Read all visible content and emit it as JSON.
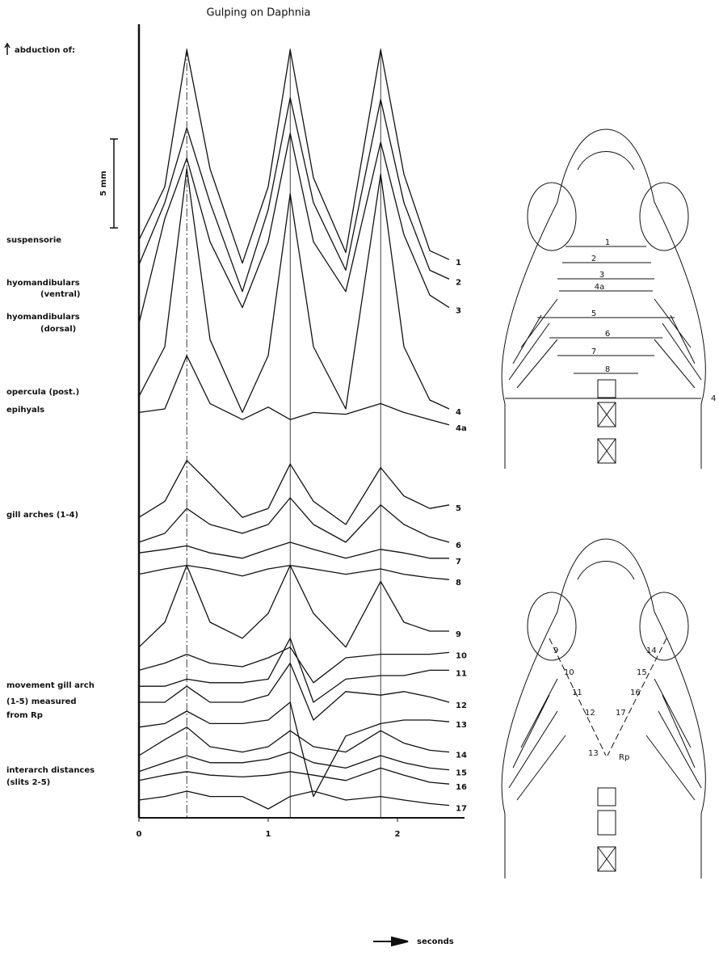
{
  "chart_data": {
    "type": "line",
    "title": "Gulping on Daphnia",
    "y_label": "abduction of:",
    "x_label": "seconds",
    "scale_bar": {
      "value": 5,
      "label": "5 mm"
    },
    "row_labels": [
      "suspensorie",
      "hyomandibulars",
      "(ventral)",
      "hyomandibulars",
      "(dorsal)",
      "opercula (post.)",
      "epihyals",
      "gill arches (1-4)",
      "movement gill arch",
      "(1-5) measured",
      "from Rp",
      "interarch distances",
      "(slits 2-5)"
    ],
    "xlim": [
      0,
      2.5
    ],
    "xticks": [
      0,
      1,
      2
    ],
    "ylim": [
      0,
      45
    ],
    "reference_lines": [
      {
        "x": 0.37,
        "style": "dashed"
      },
      {
        "x": 1.17,
        "style": "solid"
      },
      {
        "x": 1.87,
        "style": "solid"
      }
    ],
    "x": [
      0,
      0.2,
      0.37,
      0.55,
      0.8,
      1.0,
      1.17,
      1.35,
      1.6,
      1.87,
      2.05,
      2.25,
      2.4
    ],
    "series": [
      {
        "name": "1",
        "color": "#111",
        "values": [
          32.5,
          35.5,
          43.2,
          36.5,
          31.2,
          35.5,
          43.2,
          36,
          31.8,
          43.2,
          36.2,
          31.9,
          31.4
        ]
      },
      {
        "name": "2",
        "color": "#111",
        "values": [
          31.1,
          34.6,
          38.8,
          34.6,
          29.6,
          34.2,
          40.5,
          34.6,
          30.8,
          40.4,
          34.6,
          30.8,
          30.3
        ]
      },
      {
        "name": "3",
        "color": "#111",
        "values": [
          27.8,
          33.7,
          37.1,
          32.4,
          28.7,
          32.4,
          38.5,
          32.4,
          29.6,
          38,
          32.8,
          29.4,
          28.7
        ]
      },
      {
        "name": "4",
        "color": "#111",
        "values": [
          23.7,
          26.5,
          36.5,
          26.9,
          22.8,
          26,
          35.1,
          26.5,
          23,
          36.2,
          26.5,
          23.5,
          23
        ]
      },
      {
        "name": "4a",
        "color": "#111",
        "values": [
          22.8,
          23,
          26,
          23.3,
          22.4,
          23.1,
          22.4,
          22.8,
          22.7,
          23.3,
          22.8,
          22.4,
          22.1
        ]
      },
      {
        "name": "5",
        "color": "#111",
        "values": [
          16.9,
          17.8,
          20.1,
          18.8,
          16.9,
          17.4,
          19.9,
          17.8,
          16.5,
          19.7,
          18.1,
          17.4,
          17.6
        ]
      },
      {
        "name": "6",
        "color": "#111",
        "values": [
          15.5,
          16,
          17.4,
          16.5,
          16,
          16.5,
          18,
          16.5,
          15.5,
          17.6,
          16.5,
          15.8,
          15.5
        ]
      },
      {
        "name": "7",
        "color": "#111",
        "values": [
          14.9,
          15.1,
          15.3,
          14.9,
          14.6,
          15.1,
          15.5,
          15.1,
          14.6,
          15.1,
          14.9,
          14.6,
          14.6
        ]
      },
      {
        "name": "8",
        "color": "#111",
        "values": [
          13.7,
          14,
          14.2,
          14,
          13.6,
          14,
          14.2,
          14,
          13.7,
          14,
          13.7,
          13.5,
          13.4
        ]
      },
      {
        "name": "9",
        "color": "#111",
        "values": [
          9.6,
          11,
          14.2,
          11,
          10.1,
          11.5,
          14.2,
          11.5,
          9.6,
          13.3,
          11,
          10.5,
          10.5
        ]
      },
      {
        "name": "10",
        "color": "#111",
        "values": [
          8.3,
          8.7,
          9.2,
          8.7,
          8.5,
          9,
          9.6,
          7.6,
          9,
          9.2,
          9.2,
          9.2,
          9.3
        ]
      },
      {
        "name": "11",
        "color": "#111",
        "values": [
          7.4,
          7.4,
          7.8,
          7.6,
          7.6,
          7.8,
          10.1,
          6.5,
          7.8,
          8,
          8,
          8.3,
          8.3
        ]
      },
      {
        "name": "12",
        "color": "#111",
        "values": [
          6.5,
          6.5,
          7.4,
          6.5,
          6.5,
          6.9,
          8.7,
          5.5,
          7.1,
          6.9,
          7.1,
          6.8,
          6.5
        ]
      },
      {
        "name": "13",
        "color": "#111",
        "values": [
          5.1,
          5.3,
          6,
          5.3,
          5.3,
          5.5,
          6.5,
          1.2,
          4.6,
          5.3,
          5.5,
          5.5,
          5.4
        ]
      },
      {
        "name": "14",
        "color": "#111",
        "values": [
          3.5,
          4.4,
          5.1,
          4,
          3.7,
          4,
          4.9,
          4,
          3.7,
          4.9,
          4.2,
          3.8,
          3.7
        ]
      },
      {
        "name": "15",
        "color": "#111",
        "values": [
          2.6,
          3.1,
          3.5,
          3.1,
          3.1,
          3.3,
          3.7,
          3.1,
          2.8,
          3.5,
          3.1,
          2.8,
          2.7
        ]
      },
      {
        "name": "16",
        "color": "#111",
        "values": [
          2.1,
          2.4,
          2.6,
          2.4,
          2.3,
          2.4,
          2.6,
          2.4,
          2.1,
          2.8,
          2.4,
          2,
          1.9
        ]
      },
      {
        "name": "17",
        "color": "#111",
        "values": [
          1,
          1.2,
          1.5,
          1.2,
          1.2,
          0.5,
          1.2,
          1.5,
          1,
          1.2,
          1,
          0.8,
          0.7
        ]
      }
    ]
  },
  "diagrams": {
    "top": {
      "labels": [
        "1",
        "2",
        "3",
        "4a",
        "5",
        "6",
        "7",
        "8",
        "4"
      ]
    },
    "bottom": {
      "labels": [
        "9",
        "10",
        "11",
        "12",
        "13",
        "14",
        "15",
        "16",
        "17",
        "Rp"
      ]
    }
  }
}
